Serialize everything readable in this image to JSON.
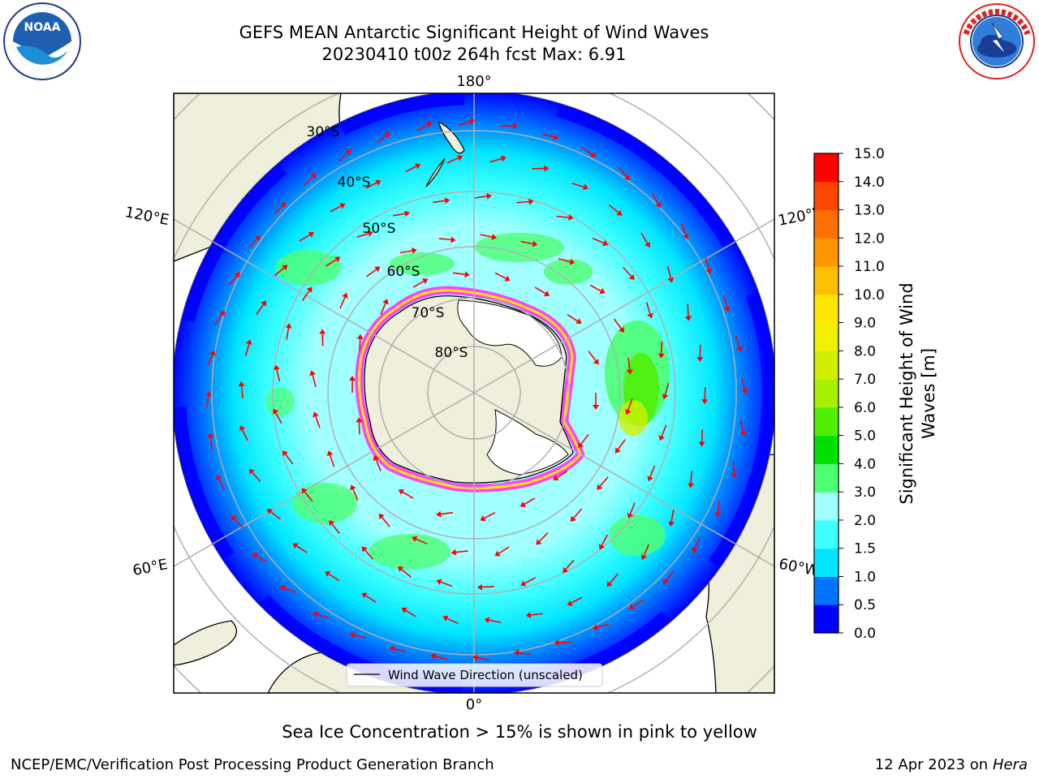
{
  "title": {
    "line1": "GEFS MEAN Antarctic Significant Height of Wind Waves",
    "line2": "20230410 t00z 264h fcst   Max: 6.91"
  },
  "logos": {
    "noaa": {
      "text": "NOAA",
      "ring_text": "NATIONAL OCEANIC AND ATMOSPHERIC ADMINISTRATION · U.S. DEPARTMENT OF COMMERCE"
    },
    "nws": {
      "ring_text": "NATIONAL WEATHER SERVICE"
    }
  },
  "map": {
    "projection": "south-polar-stereographic",
    "longitude_labels": [
      "180°",
      "120°E",
      "120°W",
      "60°E",
      "60°W",
      "0°"
    ],
    "latitude_labels": [
      "30°S",
      "40°S",
      "50°S",
      "60°S",
      "70°S",
      "80°S"
    ],
    "legend_label": "Wind Wave Direction (unscaled)",
    "colors": {
      "land": "#efefdb",
      "ice_sheet": "#ffffff",
      "grid": "#b0b0b0",
      "arrow": "#ff0000"
    }
  },
  "colorbar": {
    "label": "Significant Height of Wind Waves [m]",
    "label_line1": "Significant Height of Wind",
    "label_line2": "Waves [m]",
    "ticks": [
      "0.0",
      "0.5",
      "1.0",
      "1.5",
      "2.0",
      "3.0",
      "4.0",
      "5.0",
      "6.0",
      "7.0",
      "8.0",
      "9.0",
      "10.0",
      "11.0",
      "12.0",
      "13.0",
      "14.0",
      "15.0"
    ],
    "colors": [
      "#0000ff",
      "#0073ff",
      "#00e5ff",
      "#40ffff",
      "#a0ffff",
      "#4dff73",
      "#00e000",
      "#50ee00",
      "#a8f000",
      "#d0f000",
      "#f0f000",
      "#ffe600",
      "#ffbe00",
      "#ff9600",
      "#ff6e00",
      "#ff4600",
      "#ff0000"
    ]
  },
  "footer": {
    "note": "Sea Ice Concentration > 15% is shown in pink to yellow",
    "left": "NCEP/EMC/Verification Post Processing Product Generation Branch",
    "right_date": "12 Apr 2023 on ",
    "right_host": "Hera"
  }
}
